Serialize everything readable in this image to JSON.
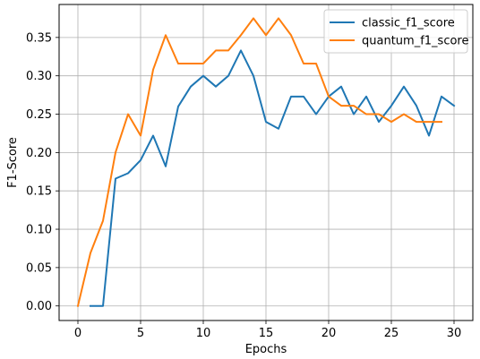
{
  "chart_data": {
    "type": "line",
    "xlabel": "Epochs",
    "ylabel": "F1-Score",
    "xlim": [
      -1.5,
      31.5
    ],
    "ylim": [
      -0.019,
      0.393
    ],
    "xticks": [
      0,
      5,
      10,
      15,
      20,
      25,
      30
    ],
    "yticks": [
      0.0,
      0.05,
      0.1,
      0.15,
      0.2,
      0.25,
      0.3,
      0.35
    ],
    "xtick_labels": [
      "0",
      "5",
      "10",
      "15",
      "20",
      "25",
      "30"
    ],
    "ytick_labels": [
      "0.00",
      "0.05",
      "0.10",
      "0.15",
      "0.20",
      "0.25",
      "0.30",
      "0.35"
    ],
    "grid": true,
    "legend_position": "top-right",
    "series": [
      {
        "name": "classic_f1_score",
        "color": "#1f77b4",
        "x": [
          1,
          2,
          3,
          4,
          5,
          6,
          7,
          8,
          9,
          10,
          11,
          12,
          13,
          14,
          15,
          16,
          17,
          18,
          19,
          20,
          21,
          22,
          23,
          24,
          25,
          26,
          27,
          28,
          29,
          30
        ],
        "values": [
          0.0,
          0.0,
          0.166,
          0.173,
          0.19,
          0.222,
          0.182,
          0.26,
          0.286,
          0.3,
          0.286,
          0.3,
          0.333,
          0.3,
          0.24,
          0.231,
          0.273,
          0.273,
          0.25,
          0.273,
          0.286,
          0.25,
          0.273,
          0.24,
          0.261,
          0.286,
          0.261,
          0.222,
          0.273,
          0.261
        ]
      },
      {
        "name": "quantum_f1_score",
        "color": "#ff7f0e",
        "x": [
          0,
          1,
          2,
          3,
          4,
          5,
          6,
          7,
          8,
          9,
          10,
          11,
          12,
          13,
          14,
          15,
          16,
          17,
          18,
          19,
          20,
          21,
          22,
          23,
          24,
          25,
          26,
          27,
          28,
          29
        ],
        "values": [
          0.0,
          0.069,
          0.111,
          0.2,
          0.25,
          0.222,
          0.308,
          0.353,
          0.316,
          0.316,
          0.316,
          0.333,
          0.333,
          0.353,
          0.375,
          0.353,
          0.375,
          0.353,
          0.316,
          0.316,
          0.273,
          0.261,
          0.261,
          0.25,
          0.25,
          0.24,
          0.25,
          0.24,
          0.24,
          0.24
        ]
      }
    ]
  }
}
